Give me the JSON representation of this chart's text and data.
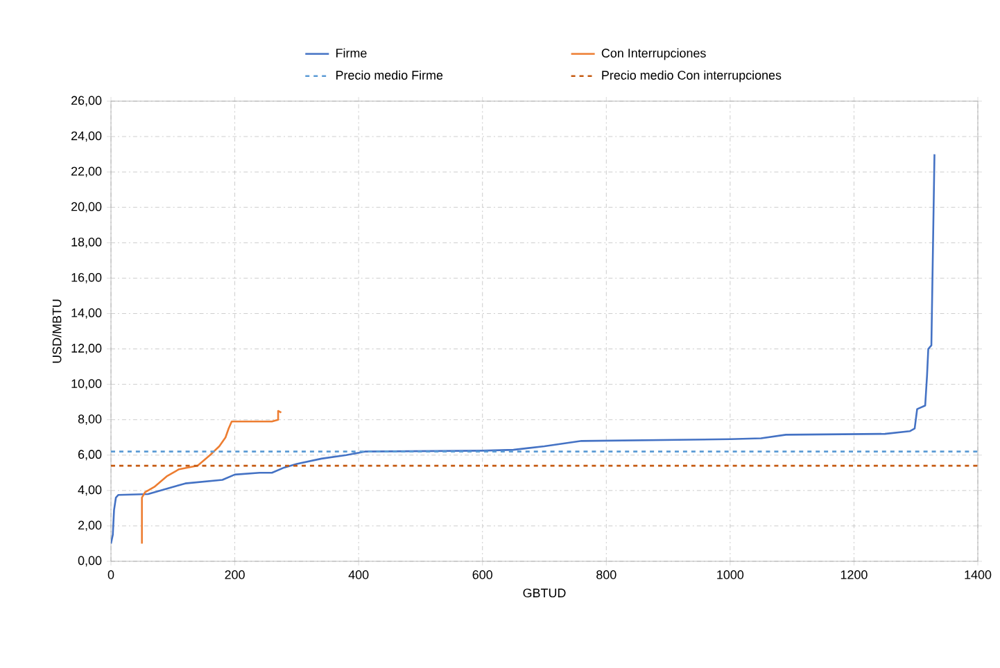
{
  "chart_data": {
    "type": "line",
    "xlabel": "GBTUD",
    "ylabel": "USD/MBTU",
    "xlim": [
      0,
      1400
    ],
    "xticks": [
      0,
      200,
      400,
      600,
      800,
      1000,
      1200,
      1400
    ],
    "ylim": [
      0,
      26
    ],
    "yticks": [
      {
        "value": 0,
        "label": "0,00"
      },
      {
        "value": 2,
        "label": "2,00"
      },
      {
        "value": 4,
        "label": "4,00"
      },
      {
        "value": 6,
        "label": "6,00"
      },
      {
        "value": 8,
        "label": "8,00"
      },
      {
        "value": 10,
        "label": "10,00"
      },
      {
        "value": 12,
        "label": "12,00"
      },
      {
        "value": 14,
        "label": "14,00"
      },
      {
        "value": 16,
        "label": "16,00"
      },
      {
        "value": 18,
        "label": "18,00"
      },
      {
        "value": 20,
        "label": "20,00"
      },
      {
        "value": 22,
        "label": "22,00"
      },
      {
        "value": 24,
        "label": "24,00"
      },
      {
        "value": 26,
        "label": "26,00"
      }
    ],
    "grid": true,
    "legend": "top",
    "series": [
      {
        "name": "Firme",
        "color": "#4472c4",
        "line_style": "solid",
        "x": [
          0,
          3,
          5,
          8,
          12,
          60,
          80,
          100,
          120,
          150,
          180,
          200,
          240,
          260,
          280,
          300,
          340,
          380,
          410,
          600,
          650,
          700,
          760,
          1000,
          1050,
          1090,
          1250,
          1290,
          1298,
          1302,
          1315,
          1318,
          1320,
          1325,
          1330
        ],
        "values": [
          1.0,
          1.5,
          2.9,
          3.6,
          3.75,
          3.8,
          4.0,
          4.2,
          4.4,
          4.5,
          4.6,
          4.9,
          5.0,
          5.0,
          5.3,
          5.5,
          5.8,
          6.0,
          6.2,
          6.25,
          6.3,
          6.5,
          6.8,
          6.9,
          6.95,
          7.15,
          7.2,
          7.35,
          7.5,
          8.6,
          8.8,
          10.5,
          12.0,
          12.2,
          23.0
        ]
      },
      {
        "name": "Con Interrupciones",
        "color": "#ed7d31",
        "line_style": "solid",
        "x": [
          50,
          50,
          55,
          70,
          90,
          110,
          140,
          160,
          175,
          185,
          190,
          195,
          260,
          270,
          270,
          275
        ],
        "values": [
          1.0,
          3.6,
          3.9,
          4.2,
          4.8,
          5.2,
          5.4,
          6.0,
          6.5,
          7.0,
          7.5,
          7.9,
          7.9,
          8.0,
          8.5,
          8.4
        ]
      },
      {
        "name": "Precio medio Firme",
        "color": "#5b9bd5",
        "line_style": "dashed",
        "x": [
          0,
          1400
        ],
        "values": [
          6.2,
          6.2
        ]
      },
      {
        "name": "Precio medio Con interrupciones",
        "color": "#c55a11",
        "line_style": "dashed",
        "x": [
          0,
          1400
        ],
        "values": [
          5.4,
          5.4
        ]
      }
    ]
  }
}
